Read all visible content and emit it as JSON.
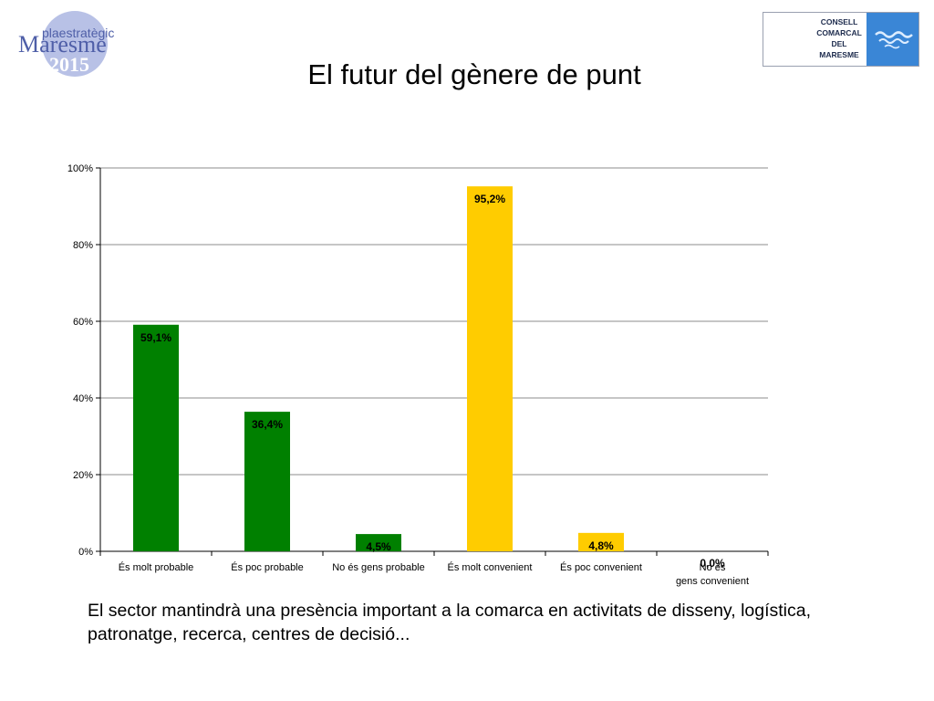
{
  "header": {
    "title": "El futur del gènere de punt",
    "logo_left": {
      "line1": "plaestratègic",
      "line2": "Maresme",
      "line3": "2015"
    },
    "logo_right": {
      "lines": [
        "CONSELL",
        "COMARCAL",
        "DEL",
        "MARESME"
      ]
    }
  },
  "chart_data": {
    "type": "bar",
    "title": "",
    "xlabel": "",
    "ylabel": "",
    "categories": [
      "És molt probable",
      "És poc probable",
      "No és gens probable",
      "És molt convenient",
      "És poc convenient",
      "No és gens convenient"
    ],
    "values": [
      59.1,
      36.4,
      4.5,
      95.2,
      4.8,
      0.0
    ],
    "data_labels": [
      "59,1%",
      "36,4%",
      "4,5%",
      "95,2%",
      "4,8%",
      "0,0%"
    ],
    "ylim": [
      0,
      100
    ],
    "yticks": [
      0,
      20,
      40,
      60,
      80,
      100
    ],
    "ytick_labels": [
      "0%",
      "20%",
      "40%",
      "60%",
      "80%",
      "100%"
    ],
    "grid": true,
    "legend": "none",
    "colors": [
      "#008000",
      "#008000",
      "#008000",
      "#ffcc00",
      "#ffcc00",
      "#ffcc00"
    ]
  },
  "caption": "El sector mantindrà una presència important a la comarca en activitats de disseny, logística, patronatge, recerca, centres de decisió..."
}
